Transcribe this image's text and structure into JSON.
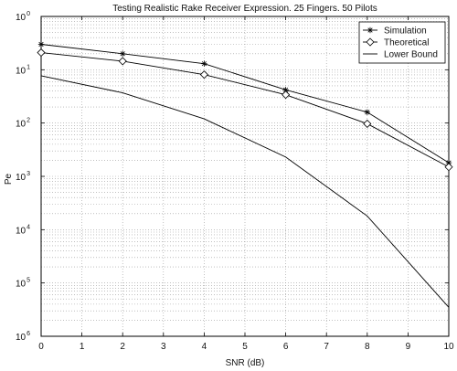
{
  "chart_data": {
    "type": "line",
    "title": "Testing Realistic Rake Receiver Expression. 25 Fingers. 50 Pilots",
    "xlabel": "SNR (dB)",
    "ylabel": "Pe",
    "xlim": [
      0,
      10
    ],
    "ylim": [
      1e-06,
      1
    ],
    "yscale": "log",
    "grid": true,
    "legend_position": "top-right",
    "x": [
      0,
      2,
      4,
      6,
      8,
      10
    ],
    "x_ticks": [
      "0",
      "1",
      "2",
      "3",
      "4",
      "5",
      "6",
      "7",
      "8",
      "9",
      "10"
    ],
    "y_ticks": [
      {
        "base": "10",
        "exp": "0"
      },
      {
        "base": "10",
        "exp": "1"
      },
      {
        "base": "10",
        "exp": "2"
      },
      {
        "base": "10",
        "exp": "3"
      },
      {
        "base": "10",
        "exp": "4"
      },
      {
        "base": "10",
        "exp": "5"
      },
      {
        "base": "10",
        "exp": "6"
      }
    ],
    "series": [
      {
        "name": "Simulation",
        "marker": "asterisk",
        "values": [
          0.3,
          0.2,
          0.13,
          0.042,
          0.016,
          0.0018
        ]
      },
      {
        "name": "Theoretical",
        "marker": "diamond",
        "values": [
          0.21,
          0.145,
          0.081,
          0.034,
          0.0097,
          0.0015
        ]
      },
      {
        "name": "Lower Bound",
        "marker": "none",
        "values": [
          0.077,
          0.037,
          0.012,
          0.0023,
          0.00018,
          3.5e-06
        ]
      }
    ]
  }
}
